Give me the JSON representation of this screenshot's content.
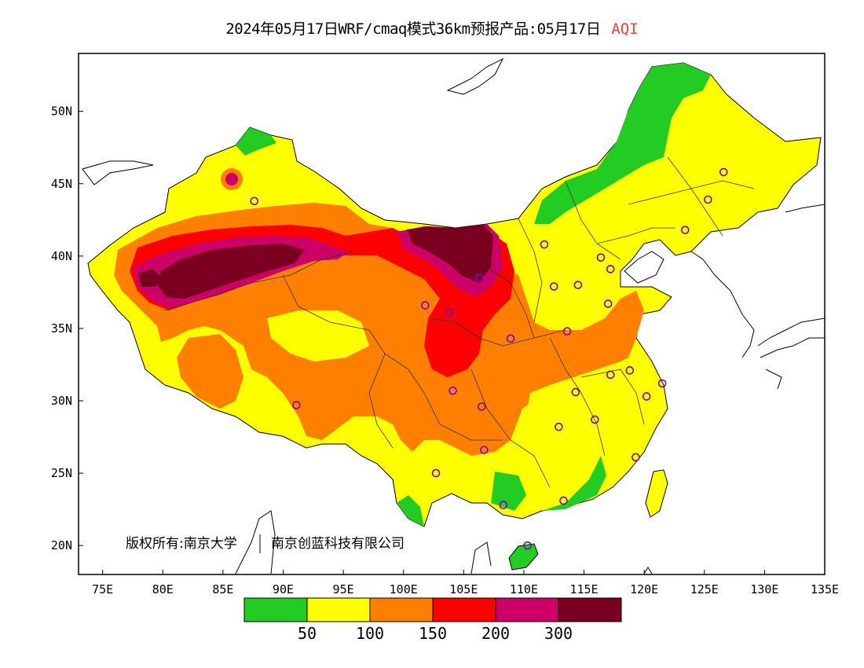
{
  "title": {
    "main": "2024年05月17日WRF/cmaq模式36km预报产品:05月17日",
    "variable": "AQI",
    "variable_color": "#e8403c"
  },
  "map": {
    "lon_range": [
      73,
      135
    ],
    "lat_range": [
      18,
      54
    ],
    "lon_ticks": [
      "75E",
      "80E",
      "85E",
      "90E",
      "95E",
      "100E",
      "105E",
      "110E",
      "115E",
      "120E",
      "125E",
      "130E",
      "135E"
    ],
    "lat_ticks": [
      "50N",
      "45N",
      "40N",
      "35N",
      "30N",
      "25N",
      "20N"
    ],
    "copyright_left": "版权所有:南京大学",
    "copyright_right": "南京创蓝科技有限公司"
  },
  "colorbar": {
    "colors": [
      "#22cc22",
      "#ffff00",
      "#ff8000",
      "#ff0000",
      "#cc0066",
      "#7a0020"
    ],
    "labels": [
      "50",
      "100",
      "150",
      "200",
      "300"
    ]
  },
  "stations": [
    [
      87.6,
      43.8
    ],
    [
      91.1,
      29.7
    ],
    [
      101.8,
      36.6
    ],
    [
      103.8,
      36.1
    ],
    [
      106.3,
      38.5
    ],
    [
      104.1,
      30.7
    ],
    [
      106.5,
      29.6
    ],
    [
      106.7,
      26.6
    ],
    [
      102.7,
      25.0
    ],
    [
      108.3,
      22.8
    ],
    [
      110.3,
      20.0
    ],
    [
      113.3,
      23.1
    ],
    [
      112.9,
      28.2
    ],
    [
      115.9,
      28.7
    ],
    [
      114.3,
      30.6
    ],
    [
      117.2,
      31.8
    ],
    [
      118.8,
      32.1
    ],
    [
      120.2,
      30.3
    ],
    [
      121.5,
      31.2
    ],
    [
      119.3,
      26.1
    ],
    [
      113.6,
      34.8
    ],
    [
      117.0,
      36.7
    ],
    [
      114.5,
      38.0
    ],
    [
      112.5,
      37.9
    ],
    [
      111.7,
      40.8
    ],
    [
      116.4,
      39.9
    ],
    [
      117.2,
      39.1
    ],
    [
      123.4,
      41.8
    ],
    [
      125.3,
      43.9
    ],
    [
      126.6,
      45.8
    ],
    [
      108.9,
      34.3
    ]
  ]
}
